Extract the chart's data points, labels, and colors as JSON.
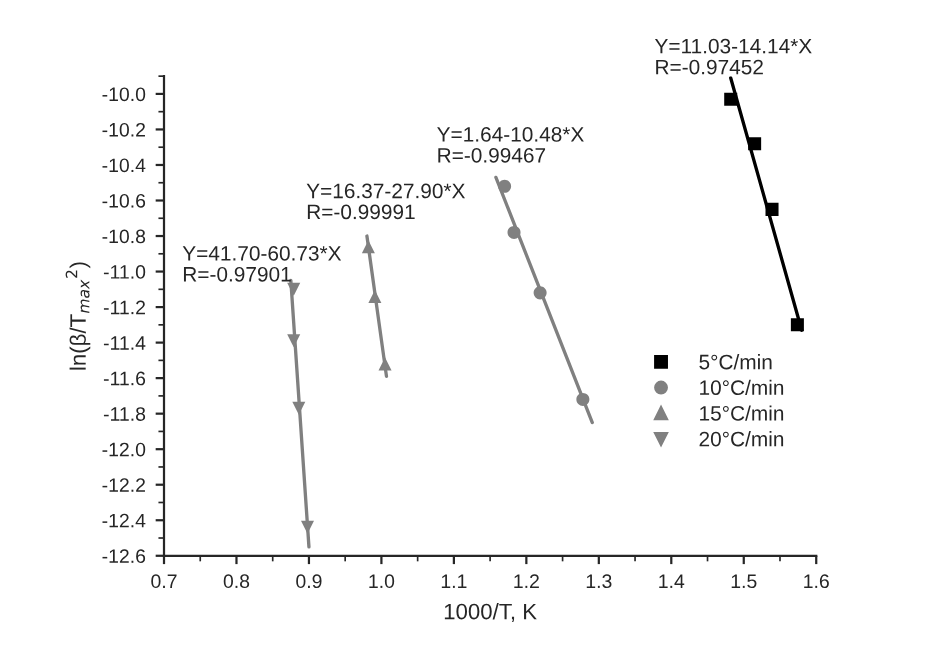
{
  "chart_data": {
    "type": "scatter",
    "xlabel": "1000/T, K",
    "ylabel": "ln(β/T$_{max}$$^{2}$)",
    "xlim": [
      0.7,
      1.6
    ],
    "ylim": [
      -12.6,
      -9.9
    ],
    "xticks": [
      0.7,
      0.8,
      0.9,
      {
        "value": 1.0,
        "label": "1.0"
      },
      1.1,
      1.2,
      1.3,
      1.4,
      1.5,
      1.6
    ],
    "yticks": [
      {
        "value": -10.0,
        "label": "-10.0"
      },
      -10.2,
      -10.4,
      -10.6,
      -10.8,
      {
        "value": -11.0,
        "label": "-11.0"
      },
      -11.2,
      -11.4,
      -11.6,
      -11.8,
      {
        "value": -12.0,
        "label": "-12.0"
      },
      -12.2,
      -12.4,
      -12.6
    ],
    "legend": "center right",
    "grid": false,
    "series": [
      {
        "name": "5°C/min",
        "color": "#000000",
        "marker": "square",
        "x": [
          1.482,
          1.515,
          1.539,
          1.574
        ],
        "values": [
          -10.03,
          -10.28,
          -10.65,
          -11.3
        ]
      },
      {
        "name": "10°C/min",
        "color": "#808080",
        "marker": "circle",
        "x": [
          1.17,
          1.183,
          1.219,
          1.278
        ],
        "values": [
          -10.52,
          -10.78,
          -11.12,
          -11.72
        ]
      },
      {
        "name": "15°C/min",
        "color": "#808080",
        "marker": "triangle",
        "x": [
          0.982,
          0.991,
          1.005
        ],
        "values": [
          -10.86,
          -11.14,
          -11.52
        ]
      },
      {
        "name": "20°C/min",
        "color": "#808080",
        "marker": "triangle_down",
        "x": [
          0.879,
          0.879,
          0.886,
          0.898
        ],
        "values": [
          -11.1,
          -11.39,
          -11.77,
          -12.44
        ]
      },
      {
        "type": "line",
        "color": "#000000",
        "x": [
          1.482,
          1.58
        ],
        "values": [
          -9.91,
          -11.33
        ]
      },
      {
        "type": "line",
        "color": "#808080",
        "x": [
          1.158,
          1.291
        ],
        "values": [
          -10.47,
          -11.85
        ]
      },
      {
        "type": "line",
        "color": "#808080",
        "x": [
          0.98,
          1.007
        ],
        "values": [
          -10.8,
          -11.59
        ]
      },
      {
        "type": "line",
        "color": "#808080",
        "x": [
          0.875,
          0.9
        ],
        "values": [
          -11.05,
          -12.55
        ]
      }
    ],
    "annotations": [
      "Y=41.70-60.73*X\nR=-0.97901",
      "Y=16.37-27.90*X\nR=-0.99991",
      "Y=1.64-10.48*X\nR=-0.99467",
      "Y=11.03-14.14*X\nR=-0.97452"
    ]
  }
}
